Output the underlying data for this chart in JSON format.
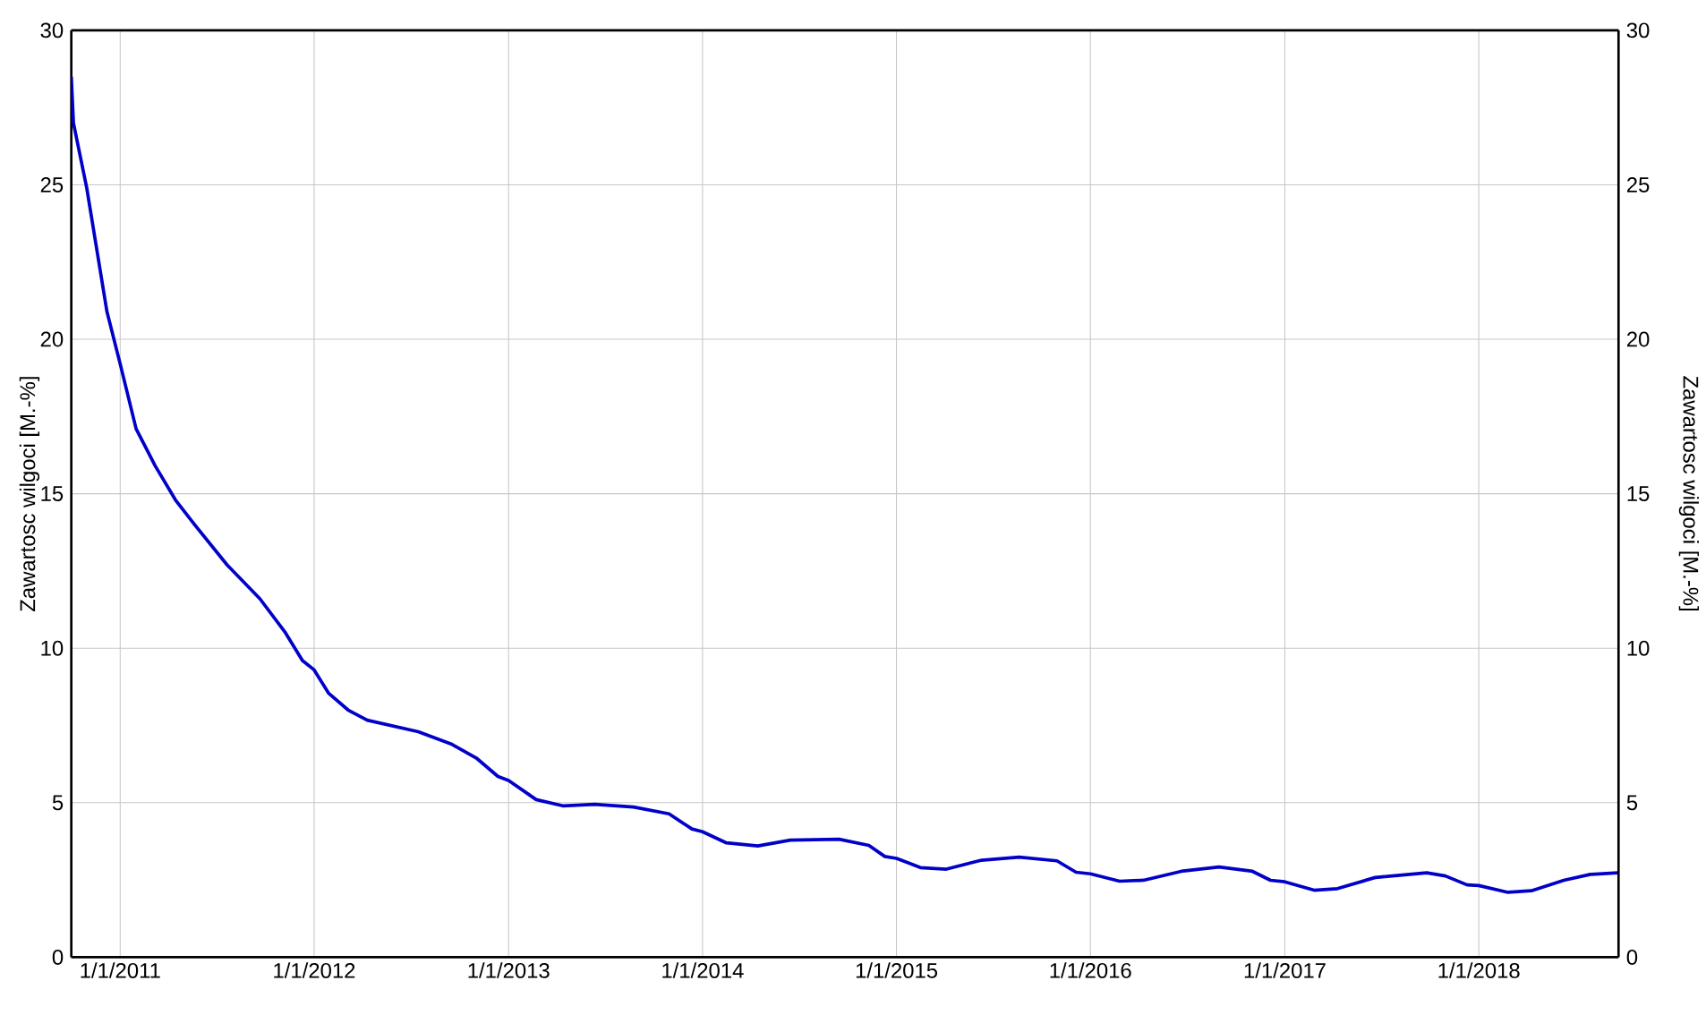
{
  "chart_data": {
    "type": "line",
    "ylabel": "Zawartosc wilgoci [M.-%]",
    "y2label": "Zawartosc wilgoci [M.-%]",
    "x": [
      "2010-10-01",
      "2010-10-05",
      "2010-10-30",
      "2010-12-07",
      "2011-01-01",
      "2011-01-31",
      "2011-03-08",
      "2011-04-15",
      "2011-05-21",
      "2011-07-21",
      "2011-09-21",
      "2011-11-08",
      "2011-12-10",
      "2012-01-01",
      "2012-01-28",
      "2012-03-05",
      "2012-04-10",
      "2012-07-15",
      "2012-09-15",
      "2012-11-01",
      "2012-12-12",
      "2013-01-01",
      "2013-02-22",
      "2013-04-13",
      "2013-06-12",
      "2013-08-24",
      "2013-10-30",
      "2013-12-12",
      "2014-01-01",
      "2014-02-15",
      "2014-04-15",
      "2014-06-15",
      "2014-09-15",
      "2014-11-10",
      "2014-12-10",
      "2015-01-01",
      "2015-02-15",
      "2015-04-05",
      "2015-06-10",
      "2015-08-20",
      "2015-10-30",
      "2015-12-05",
      "2016-01-01",
      "2016-02-25",
      "2016-04-10",
      "2016-06-20",
      "2016-08-30",
      "2016-11-01",
      "2016-12-05",
      "2017-01-01",
      "2017-02-25",
      "2017-04-10",
      "2017-06-20",
      "2017-09-25",
      "2017-10-30",
      "2017-12-10",
      "2018-01-01",
      "2018-02-25",
      "2018-04-10",
      "2018-06-10",
      "2018-07-30",
      "2018-09-20"
    ],
    "series": [
      {
        "color": "#0000c8",
        "values": [
          28.5,
          27.0,
          24.9,
          20.9,
          19.2,
          17.1,
          15.9,
          14.8,
          14.0,
          12.7,
          11.6,
          10.5,
          9.6,
          9.3,
          8.55,
          8.0,
          7.67,
          7.3,
          6.9,
          6.45,
          5.85,
          5.72,
          5.1,
          4.9,
          4.95,
          4.86,
          4.64,
          4.15,
          4.06,
          3.7,
          3.6,
          3.79,
          3.82,
          3.62,
          3.26,
          3.2,
          2.9,
          2.85,
          3.14,
          3.24,
          3.12,
          2.75,
          2.7,
          2.46,
          2.49,
          2.78,
          2.92,
          2.78,
          2.49,
          2.44,
          2.17,
          2.22,
          2.58,
          2.73,
          2.63,
          2.34,
          2.32,
          2.1,
          2.15,
          2.49,
          2.68,
          2.73
        ]
      }
    ],
    "xlim": [
      "2010-10-01",
      "2018-09-21"
    ],
    "xticks": [
      {
        "value": "2011-01-01",
        "label": "1/1/2011"
      },
      {
        "value": "2012-01-01",
        "label": "1/1/2012"
      },
      {
        "value": "2013-01-01",
        "label": "1/1/2013"
      },
      {
        "value": "2014-01-01",
        "label": "1/1/2014"
      },
      {
        "value": "2015-01-01",
        "label": "1/1/2015"
      },
      {
        "value": "2016-01-01",
        "label": "1/1/2016"
      },
      {
        "value": "2017-01-01",
        "label": "1/1/2017"
      },
      {
        "value": "2018-01-01",
        "label": "1/1/2018"
      }
    ],
    "ylim": [
      0,
      30
    ],
    "yticks": [
      0,
      5,
      10,
      15,
      20,
      25,
      30
    ],
    "y2lim": [
      0,
      30
    ],
    "y2ticks": [
      0,
      5,
      10,
      15,
      20,
      25,
      30
    ],
    "grid": true
  }
}
